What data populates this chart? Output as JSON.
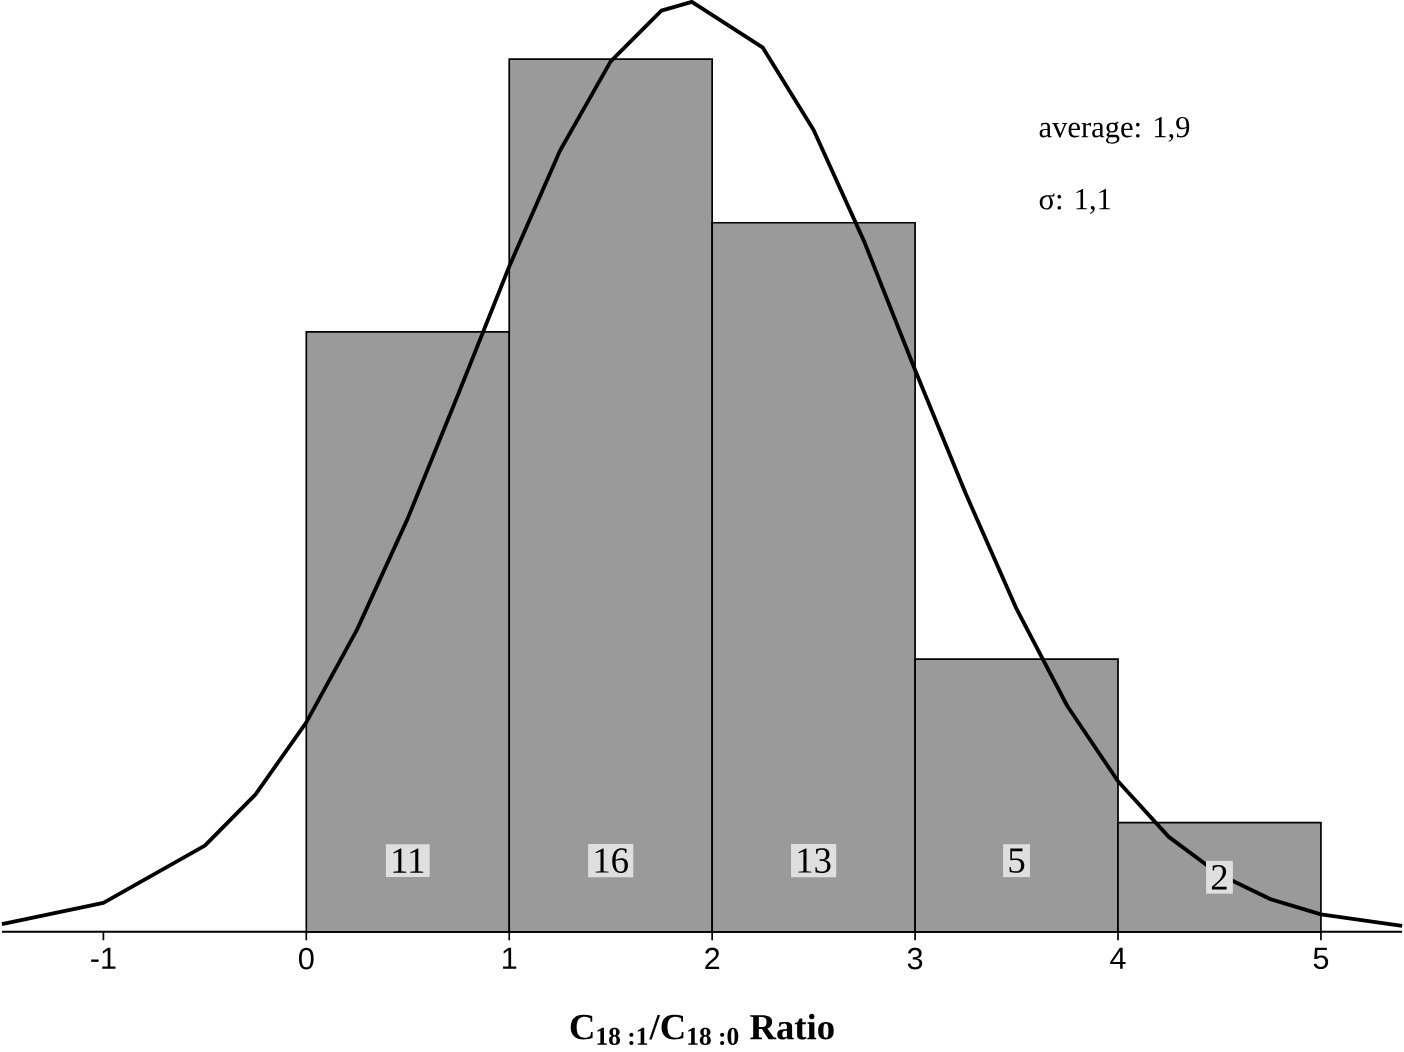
{
  "chart_data": {
    "type": "histogram",
    "xlabel": "C$_{18 :1}$/C$_{18 :0}$ Ratio",
    "bins": [
      0,
      1,
      2,
      3,
      4,
      5
    ],
    "values": [
      11,
      16,
      13,
      5,
      2
    ],
    "color": "#9a9a9a",
    "value_labels": [
      "11",
      "16",
      "13",
      "5",
      "2"
    ],
    "xlim": [
      -1.5,
      5.4
    ],
    "xticks": [
      -1,
      0,
      1,
      2,
      3,
      4,
      5
    ],
    "grid": false,
    "annotations": [
      "average: 1,9",
      "σ: 1,1"
    ],
    "series": [
      {
        "type": "line",
        "color": "#000000",
        "marker": "none",
        "x": [
          -1.5,
          -1,
          -0.5,
          -0.25,
          0,
          0.25,
          0.5,
          0.75,
          1,
          1.25,
          1.5,
          1.75,
          1.9,
          2.25,
          2.5,
          2.75,
          3,
          3.25,
          3.5,
          3.75,
          4,
          4.25,
          4.5,
          4.75,
          5,
          5.4
        ],
        "values": [
          0.14,
          0.53,
          1.58,
          2.52,
          3.84,
          5.54,
          7.58,
          9.87,
          12.2,
          14.32,
          15.96,
          16.89,
          17.05,
          16.21,
          14.7,
          12.65,
          10.3,
          8.03,
          5.92,
          4.14,
          2.76,
          1.74,
          1.05,
          0.6,
          0.32,
          0.11
        ]
      }
    ]
  }
}
